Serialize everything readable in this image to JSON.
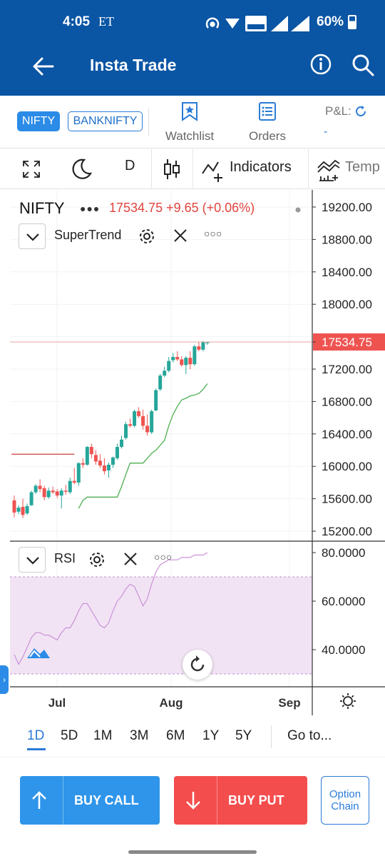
{
  "status_bar": {
    "time": "4:05",
    "carrier": "ET",
    "battery": "60%"
  },
  "app_bar": {
    "title": "Insta Trade"
  },
  "instruments": {
    "active": "NIFTY",
    "inactive": "BANKNIFTY"
  },
  "nav": {
    "watchlist": "Watchlist",
    "orders": "Orders",
    "pnl_label": "P&L:",
    "pnl_value": "-"
  },
  "toolbar": {
    "interval": "D",
    "indicators": "Indicators",
    "templates": "Temp"
  },
  "legend": {
    "symbol": "NIFTY",
    "price": "17534.75",
    "change": "+9.65 (+0.06%)"
  },
  "indicators": [
    {
      "name": "SuperTrend"
    },
    {
      "name": "RSI"
    }
  ],
  "colors": {
    "up": "#26a69a",
    "down": "#ef5350",
    "supertrend_up": "#4caf50",
    "supertrend_down": "#c62828",
    "rsi": "#c78bd6",
    "rsi_band": "#f1e3f3",
    "primary": "#0a55a4",
    "accent": "#2b8be6"
  },
  "chart_data": {
    "type": "candlestick",
    "price_axis": {
      "ticks": [
        "19200.00",
        "18800.00",
        "18400.00",
        "18000.00",
        "17534.75",
        "17200.00",
        "16800.00",
        "16400.00",
        "16000.00",
        "15600.00",
        "15200.00"
      ],
      "last_price": 17534.75
    },
    "rsi_axis": {
      "ticks": [
        "80.0000",
        "60.0000",
        "40.0000"
      ],
      "upper_band": 70,
      "lower_band": 30
    },
    "time_axis": [
      "Jul",
      "Aug",
      "Sep"
    ],
    "candles": [
      [
        15580,
        15640,
        15370,
        15430
      ],
      [
        15440,
        15520,
        15410,
        15490
      ],
      [
        15500,
        15600,
        15360,
        15400
      ],
      [
        15420,
        15540,
        15400,
        15510
      ],
      [
        15520,
        15700,
        15510,
        15680
      ],
      [
        15680,
        15780,
        15660,
        15760
      ],
      [
        15760,
        15840,
        15680,
        15720
      ],
      [
        15730,
        15760,
        15580,
        15620
      ],
      [
        15620,
        15740,
        15600,
        15700
      ],
      [
        15700,
        15750,
        15660,
        15680
      ],
      [
        15690,
        15720,
        15610,
        15640
      ],
      [
        15640,
        15730,
        15480,
        15700
      ],
      [
        15700,
        15770,
        15650,
        15690
      ],
      [
        15680,
        15860,
        15660,
        15820
      ],
      [
        15820,
        15980,
        15780,
        15800
      ],
      [
        15800,
        16050,
        15760,
        16040
      ],
      [
        16040,
        16100,
        15980,
        16020
      ],
      [
        16020,
        16250,
        16010,
        16240
      ],
      [
        16240,
        16280,
        16100,
        16150
      ],
      [
        16140,
        16200,
        16020,
        16060
      ],
      [
        16070,
        16150,
        15980,
        16010
      ],
      [
        16010,
        16100,
        15900,
        15940
      ],
      [
        15950,
        16050,
        15860,
        16020
      ],
      [
        16020,
        16120,
        15980,
        16110
      ],
      [
        16100,
        16280,
        16080,
        16240
      ],
      [
        16240,
        16380,
        16220,
        16330
      ],
      [
        16350,
        16550,
        16330,
        16520
      ],
      [
        16520,
        16590,
        16480,
        16500
      ],
      [
        16500,
        16700,
        16480,
        16680
      ],
      [
        16680,
        16730,
        16600,
        16620
      ],
      [
        16620,
        16700,
        16450,
        16500
      ],
      [
        16500,
        16640,
        16380,
        16420
      ],
      [
        16420,
        16700,
        16400,
        16680
      ],
      [
        16690,
        16960,
        16680,
        16940
      ],
      [
        16950,
        17140,
        16930,
        17120
      ],
      [
        17120,
        17230,
        17100,
        17180
      ],
      [
        17180,
        17350,
        17160,
        17300
      ],
      [
        17310,
        17400,
        17280,
        17350
      ],
      [
        17350,
        17420,
        17300,
        17320
      ],
      [
        17320,
        17360,
        17230,
        17250
      ],
      [
        17250,
        17360,
        17140,
        17340
      ],
      [
        17340,
        17420,
        17200,
        17260
      ],
      [
        17260,
        17500,
        17240,
        17480
      ],
      [
        17480,
        17530,
        17420,
        17440
      ],
      [
        17440,
        17550,
        17420,
        17530
      ],
      [
        17520,
        17540,
        17500,
        17535
      ]
    ],
    "supertrend_down": {
      "from_index": 0,
      "to_index": 14,
      "value": 16150
    },
    "supertrend_up": [
      15480,
      15580,
      15620,
      15620,
      15620,
      15620,
      15620,
      15620,
      15620,
      15620,
      15750,
      15900,
      16040,
      16040,
      16040,
      16040,
      16100,
      16160,
      16200,
      16260,
      16320,
      16500,
      16640,
      16740,
      16820,
      16840,
      16870,
      16880,
      16900,
      16950,
      17020
    ],
    "rsi": [
      38,
      34,
      37,
      41,
      45,
      47,
      47,
      46,
      46,
      45,
      44,
      47,
      49,
      49,
      52,
      56,
      59,
      59,
      56,
      53,
      50,
      49,
      51,
      56,
      60,
      62,
      65,
      67,
      66,
      62,
      58,
      61,
      67,
      72,
      75,
      76,
      77,
      77,
      77,
      78,
      78,
      78,
      79,
      79,
      79,
      80
    ]
  },
  "ranges": {
    "items": [
      "1D",
      "5D",
      "1M",
      "3M",
      "6M",
      "1Y",
      "5Y"
    ],
    "active": "1D",
    "goto": "Go to..."
  },
  "actions": {
    "buy_call": "BUY CALL",
    "buy_put": "BUY PUT",
    "option_chain_1": "Option",
    "option_chain_2": "Chain"
  }
}
